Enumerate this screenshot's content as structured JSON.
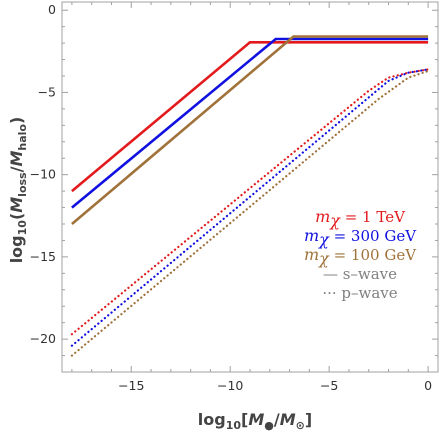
{
  "chart_data": {
    "type": "line",
    "xlabel": "log₁₀[M●/M⊙]",
    "ylabel": "log₁₀(M_loss/M_halo)",
    "xlim": [
      -18.5,
      0.5
    ],
    "ylim": [
      -22,
      0.5
    ],
    "x_ticks": [
      -15,
      -10,
      -5,
      0
    ],
    "x_tick_labels": [
      "−15",
      "−10",
      "−5",
      "0"
    ],
    "y_ticks": [
      0,
      -5,
      -10,
      -15,
      -20
    ],
    "y_tick_labels": [
      "0",
      "−5",
      "−10",
      "−15",
      "−20"
    ],
    "grid": false,
    "legend_position": "right-middle",
    "series": [
      {
        "name": "mχ = 1 TeV, s-wave",
        "color": "#e31a1c",
        "style": "solid",
        "x": [
          -18,
          -9,
          0
        ],
        "y": [
          -11.0,
          -1.95,
          -1.95
        ]
      },
      {
        "name": "mχ = 300 GeV, s-wave",
        "color": "#1010e0",
        "style": "solid",
        "x": [
          -18,
          -7.7,
          0
        ],
        "y": [
          -12.0,
          -1.75,
          -1.75
        ]
      },
      {
        "name": "mχ = 100 GeV, s-wave",
        "color": "#a0723a",
        "style": "solid",
        "x": [
          -18,
          -6.8,
          0
        ],
        "y": [
          -13.0,
          -1.6,
          -1.6
        ]
      },
      {
        "name": "mχ = 1 TeV, p-wave",
        "color": "#e31a1c",
        "style": "dotted",
        "x": [
          -18,
          -3,
          -2,
          -1,
          0
        ],
        "y": [
          -19.7,
          -4.9,
          -4.1,
          -3.8,
          -3.6
        ]
      },
      {
        "name": "mχ = 300 GeV, p-wave",
        "color": "#1010e0",
        "style": "dotted",
        "x": [
          -18,
          -2,
          -1,
          0
        ],
        "y": [
          -20.4,
          -4.3,
          -3.8,
          -3.6
        ]
      },
      {
        "name": "mχ = 100 GeV, p-wave",
        "color": "#a0723a",
        "style": "dotted",
        "x": [
          -18,
          -2.5,
          -1,
          0
        ],
        "y": [
          -21.0,
          -5.4,
          -4.1,
          -3.7
        ]
      }
    ],
    "legend": [
      {
        "symbol": "m",
        "sub": "χ",
        "text": " = 1 TeV",
        "color": "#e31a1c"
      },
      {
        "symbol": "m",
        "sub": "χ",
        "text": " = 300 GeV",
        "color": "#1010e0"
      },
      {
        "symbol": "m",
        "sub": "χ",
        "text": " = 100 GeV",
        "color": "#a0723a"
      },
      {
        "mark": "—",
        "text": " s–wave",
        "color": "#808080"
      },
      {
        "mark": "···",
        "text": " p–wave",
        "color": "#808080"
      }
    ]
  }
}
